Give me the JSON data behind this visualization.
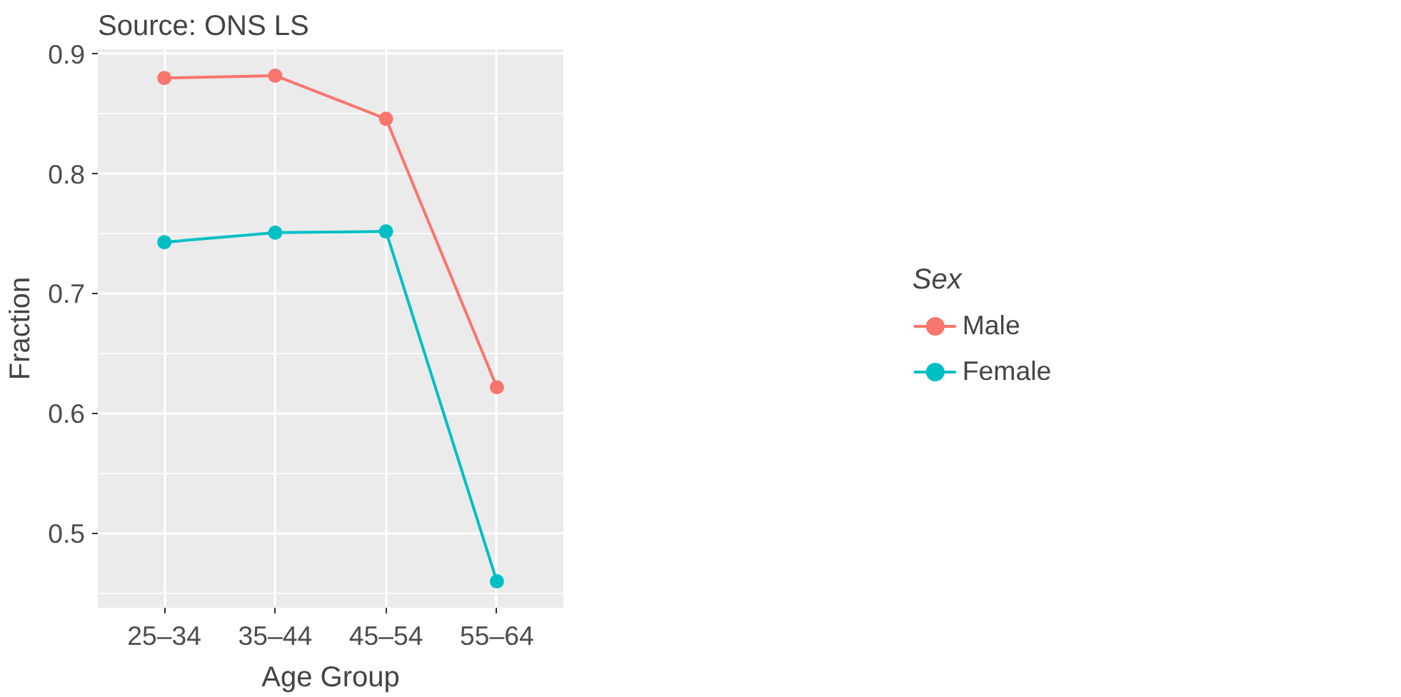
{
  "chart_data": {
    "type": "line",
    "title": "Source: ONS LS",
    "xlabel": "Age Group",
    "ylabel": "Fraction",
    "legend_title": "Sex",
    "categories": [
      "25–34",
      "35–44",
      "45–54",
      "55–64"
    ],
    "series": [
      {
        "name": "Male",
        "color": "#f8766d",
        "values": [
          0.88,
          0.882,
          0.846,
          0.622
        ]
      },
      {
        "name": "Female",
        "color": "#00bfc4",
        "values": [
          0.743,
          0.751,
          0.752,
          0.46
        ]
      }
    ],
    "ylim": [
      0.438,
      0.904
    ],
    "yticks": [
      0.5,
      0.6,
      0.7,
      0.8,
      0.9
    ],
    "grid": true,
    "legend": "right",
    "marker": "circle",
    "line_style": "solid"
  }
}
